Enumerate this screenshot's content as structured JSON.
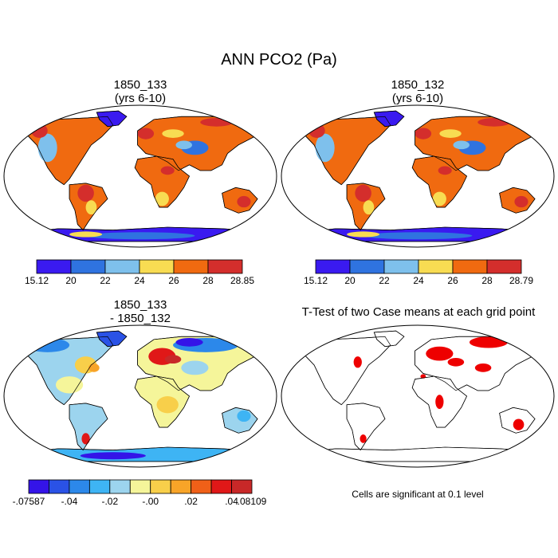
{
  "main_title": "ANN PCO2 (Pa)",
  "panels": {
    "p1": {
      "line1": "1850_133",
      "line2": "(yrs 6-10)"
    },
    "p2": {
      "line1": "1850_132",
      "line2": "(yrs 6-10)"
    },
    "p3": {
      "line1": "1850_133",
      "line2": "- 1850_132"
    },
    "p4": {
      "line1": "T-Test of two Case means at each grid point"
    }
  },
  "significance_note": "Cells are significant at 0.1 level",
  "chart_data": [
    {
      "type": "heatmap",
      "title": "1850_133 (yrs 6-10)",
      "variable": "PCO2 (Pa)",
      "projection": "Robinson world map",
      "colorbar": {
        "colors": [
          "#3a1af0",
          "#2f73e0",
          "#7ec0ec",
          "#f8dc52",
          "#f06a10",
          "#d42e2c"
        ],
        "tick_labels": [
          "15.12",
          "20",
          "22",
          "24",
          "26",
          "28",
          "28.85"
        ],
        "min": 15.12,
        "max": 28.85
      }
    },
    {
      "type": "heatmap",
      "title": "1850_132 (yrs 6-10)",
      "variable": "PCO2 (Pa)",
      "projection": "Robinson world map",
      "colorbar": {
        "colors": [
          "#3a1af0",
          "#2f73e0",
          "#7ec0ec",
          "#f8dc52",
          "#f06a10",
          "#d42e2c"
        ],
        "tick_labels": [
          "15.12",
          "20",
          "22",
          "24",
          "26",
          "28",
          "28.79"
        ],
        "min": 15.12,
        "max": 28.79
      }
    },
    {
      "type": "heatmap",
      "title": "1850_133 - 1850_132",
      "variable": "PCO2 difference (Pa)",
      "projection": "Robinson world map",
      "colorbar": {
        "colors": [
          "#3414e8",
          "#2a52e6",
          "#2c88ea",
          "#3eb4f4",
          "#9cd4ee",
          "#f5f59a",
          "#f8cf4a",
          "#f8a428",
          "#f06018",
          "#e01818",
          "#c82828"
        ],
        "tick_labels": [
          "-.07587",
          "-.04",
          "-.02",
          "-.00",
          ".02",
          ".04",
          ".08109"
        ],
        "min": -0.07587,
        "max": 0.08109
      }
    },
    {
      "type": "heatmap",
      "title": "T-Test of two Case means at each grid point",
      "projection": "Robinson world map",
      "significance_level": 0.1,
      "significant_color": "#ee0000"
    }
  ]
}
